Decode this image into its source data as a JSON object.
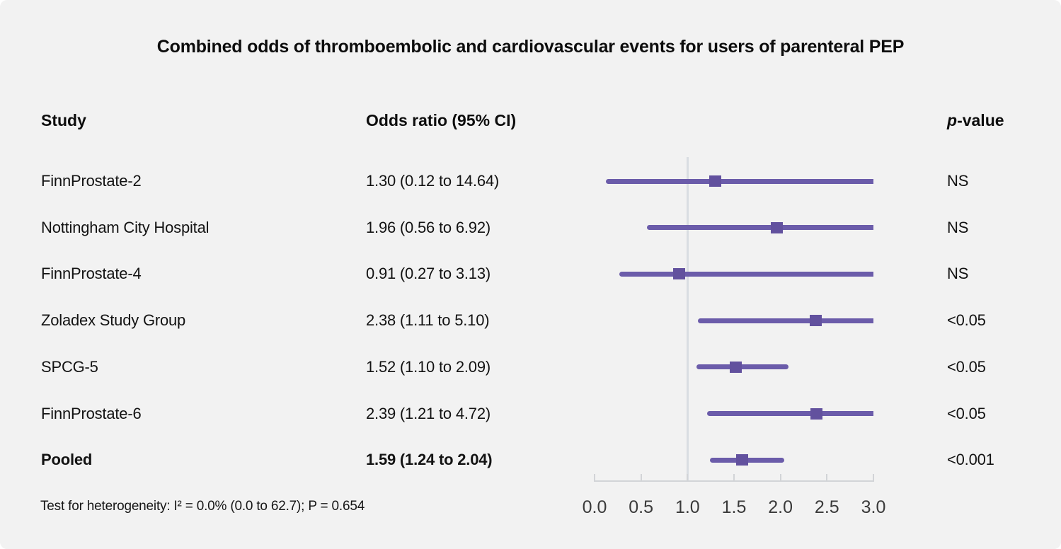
{
  "title": "Combined odds of thromboembolic and cardiovascular events for users of parenteral PEP",
  "columns": {
    "study": "Study",
    "odds_ratio": "Odds ratio (95% CI)",
    "p_value_italic": "p",
    "p_value_rest": "-value"
  },
  "footnote": "Test for heterogeneity: I² = 0.0% (0.0 to 62.7); P = 0.654",
  "colors": {
    "background": "#f2f2f2",
    "ci_line": "#6b5caa",
    "marker": "#62519e",
    "reference_line": "#d9dde2",
    "axis": "#d2d4d7",
    "axis_label": "#3a3a3a",
    "text": "#131313"
  },
  "chart_data": {
    "type": "forest",
    "title": "Combined odds of thromboembolic and cardiovascular events for users of parenteral PEP",
    "x_axis": {
      "min": 0.0,
      "max": 3.0,
      "ticks": [
        0.0,
        0.5,
        1.0,
        1.5,
        2.0,
        2.5,
        3.0
      ],
      "tick_labels": [
        "0.0",
        "0.5",
        "1.0",
        "1.5",
        "2.0",
        "2.5",
        "3.0"
      ],
      "reference_line": 1.0,
      "grid": false
    },
    "rows": [
      {
        "study": "FinnProstate-2",
        "or": 1.3,
        "ci_low": 0.12,
        "ci_high": 14.64,
        "or_label": "1.30 (0.12 to 14.64)",
        "p_value": "NS",
        "bold": false
      },
      {
        "study": "Nottingham City Hospital",
        "or": 1.96,
        "ci_low": 0.56,
        "ci_high": 6.92,
        "or_label": "1.96 (0.56 to 6.92)",
        "p_value": "NS",
        "bold": false
      },
      {
        "study": "FinnProstate-4",
        "or": 0.91,
        "ci_low": 0.27,
        "ci_high": 3.13,
        "or_label": "0.91 (0.27 to 3.13)",
        "p_value": "NS",
        "bold": false
      },
      {
        "study": "Zoladex Study Group",
        "or": 2.38,
        "ci_low": 1.11,
        "ci_high": 5.1,
        "or_label": "2.38 (1.11 to 5.10)",
        "p_value": "<0.05",
        "bold": false
      },
      {
        "study": "SPCG-5",
        "or": 1.52,
        "ci_low": 1.1,
        "ci_high": 2.09,
        "or_label": "1.52 (1.10 to 2.09)",
        "p_value": "<0.05",
        "bold": false
      },
      {
        "study": "FinnProstate-6",
        "or": 2.39,
        "ci_low": 1.21,
        "ci_high": 4.72,
        "or_label": "2.39 (1.21 to 4.72)",
        "p_value": "<0.05",
        "bold": false
      },
      {
        "study": "Pooled",
        "or": 1.59,
        "ci_low": 1.24,
        "ci_high": 2.04,
        "or_label": "1.59 (1.24 to 2.04)",
        "p_value": "<0.001",
        "bold": true
      }
    ]
  }
}
